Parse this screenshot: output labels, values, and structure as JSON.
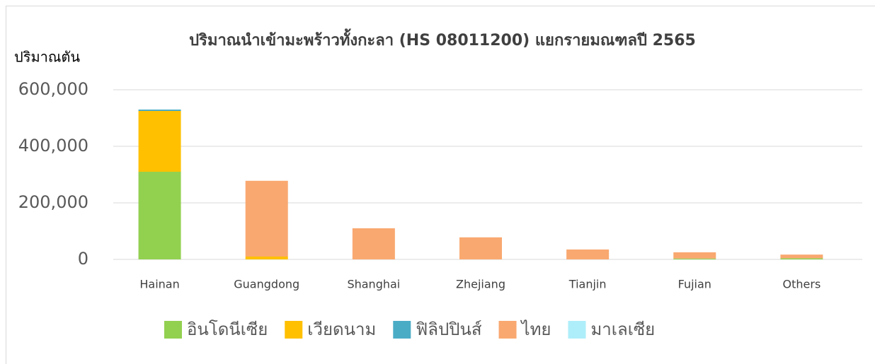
{
  "chart_data": {
    "type": "stacked_bar",
    "title": "ปริมาณนำเข้ามะพร้าวทั้งกะลา (HS 08011200) แยกรายมณฑลปี 2565",
    "y_label": "ปริมาณตัน",
    "categories": [
      "Hainan",
      "Guangdong",
      "Shanghai",
      "Zhejiang",
      "Tianjin",
      "Fujian",
      "Others"
    ],
    "series": [
      {
        "name": "อินโดนีเซีย",
        "color": "#92d050",
        "values": [
          310000,
          0,
          0,
          0,
          0,
          3000,
          4000
        ]
      },
      {
        "name": "เวียดนาม",
        "color": "#ffc000",
        "values": [
          215000,
          10000,
          0,
          0,
          0,
          0,
          0
        ]
      },
      {
        "name": "ฟิลิปปินส์",
        "color": "#4bacc6",
        "values": [
          5000,
          0,
          0,
          0,
          0,
          0,
          0
        ]
      },
      {
        "name": "ไทย",
        "color": "#f9a870",
        "values": [
          0,
          268000,
          110000,
          78000,
          35000,
          22000,
          13000
        ]
      },
      {
        "name": "มาเลเซีย",
        "color": "#aeeefa",
        "values": [
          0,
          0,
          0,
          0,
          0,
          0,
          0
        ]
      }
    ],
    "ylim": [
      0,
      600000
    ],
    "yticks": [
      {
        "value": 0,
        "label": "0"
      },
      {
        "value": 200000,
        "label": "200,000"
      },
      {
        "value": 400000,
        "label": "400,000"
      },
      {
        "value": 600000,
        "label": "600,000"
      }
    ],
    "grid": true,
    "legend": "bottom"
  }
}
